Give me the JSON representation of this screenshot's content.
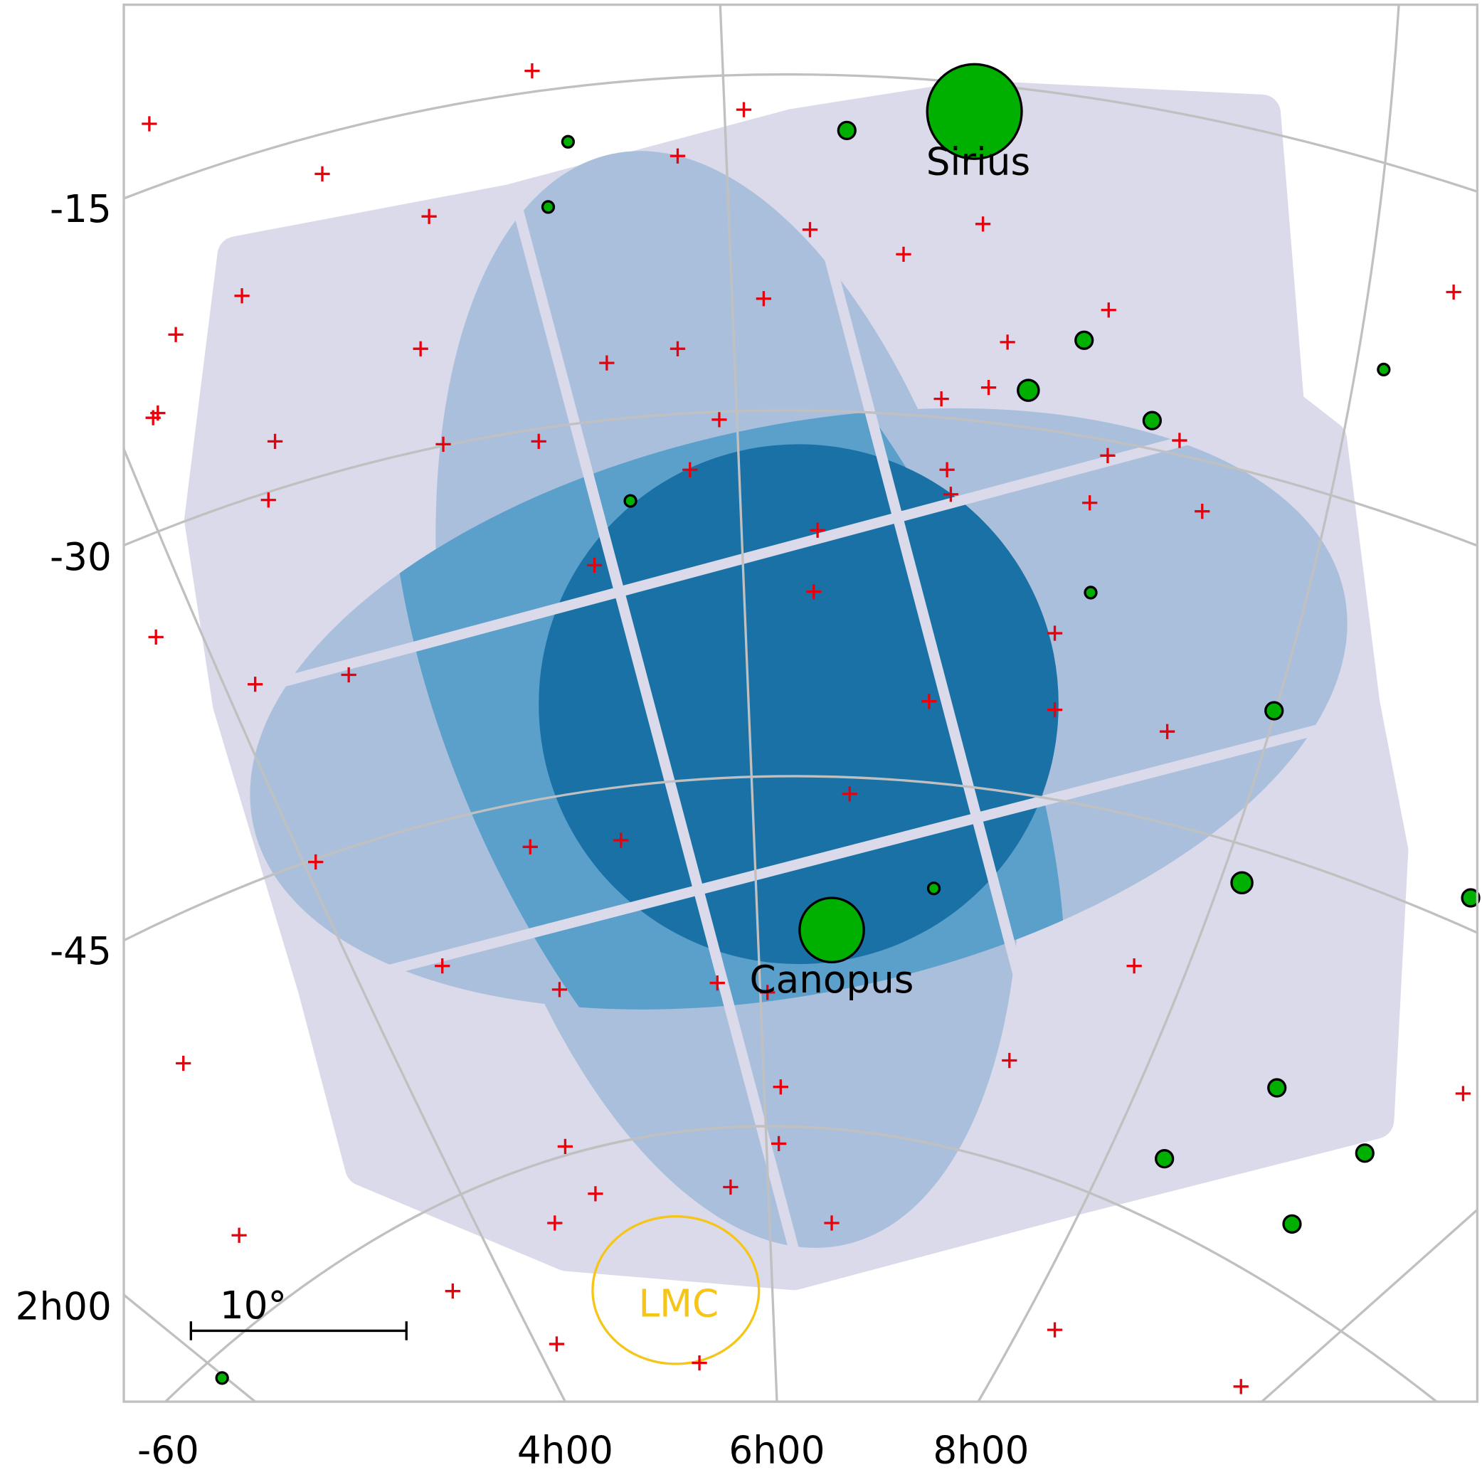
{
  "map": {
    "dec_labels": [
      "-15",
      "-30",
      "-45",
      "2h00"
    ],
    "ra_labels": [
      "-60",
      "4h00",
      "6h00",
      "8h00"
    ],
    "stars": [
      "Sirius",
      "Canopus"
    ],
    "region": "LMC",
    "scale_bar": "10°"
  }
}
